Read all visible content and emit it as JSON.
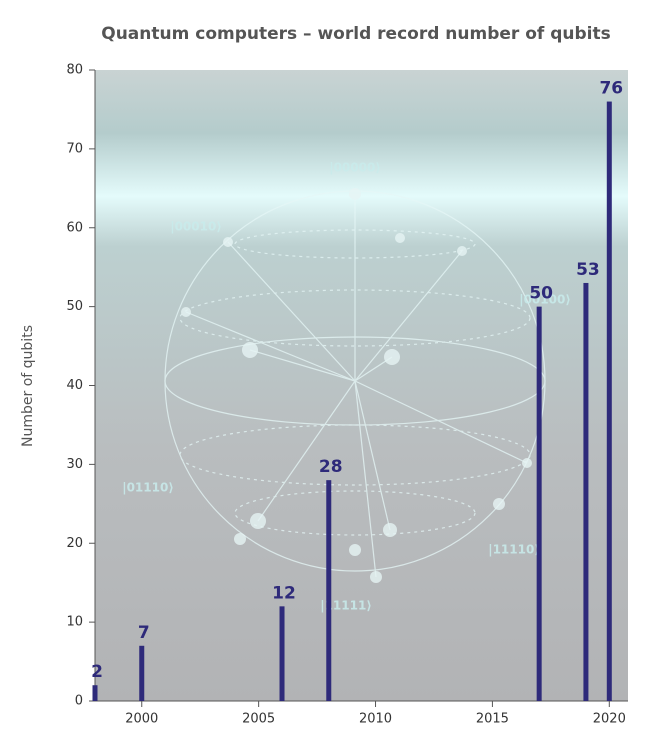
{
  "chart_data": {
    "type": "bar",
    "title": "Quantum computers – world record number of qubits",
    "y_label": "Number of qubits",
    "x": [
      1998,
      2000,
      2006,
      2008,
      2017,
      2019,
      2020
    ],
    "values": [
      2,
      7,
      12,
      28,
      50,
      53,
      76
    ],
    "color": "#2e2a7a",
    "xlim": [
      1998,
      2020.8
    ],
    "xticks": [
      2000,
      2005,
      2010,
      2015,
      2020
    ],
    "ylim": [
      0,
      80
    ],
    "yticks": [
      0,
      10,
      20,
      30,
      40,
      50,
      60,
      70,
      80
    ],
    "annotations": [
      "|00000⟩",
      "|00010⟩",
      "|00100⟩",
      "|01110⟩",
      "|11110⟩",
      "|11111⟩"
    ]
  }
}
